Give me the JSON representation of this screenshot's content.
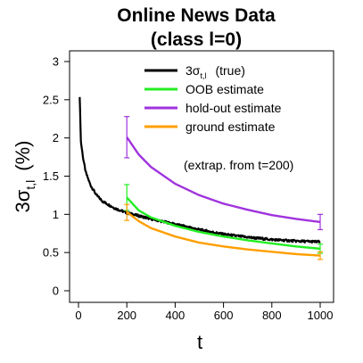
{
  "chart_data": {
    "type": "line",
    "title_line1": "Online News Data",
    "title_line2": "(class l=0)",
    "xlabel": "t",
    "ylabel": {
      "prefix": "3σ",
      "subscript": "t,l",
      "unit": "(%)"
    },
    "xlim": [
      0,
      1000
    ],
    "ylim": [
      0,
      3
    ],
    "x_ticks": [
      "0",
      "200",
      "400",
      "600",
      "800",
      "1000"
    ],
    "y_ticks": [
      "0",
      "0.5",
      "1",
      "1.5",
      "2",
      "2.5",
      "3"
    ],
    "legend_position": "top-right",
    "note": "(extrap. from t=200)",
    "series": [
      {
        "name": "3σt,l (true)",
        "legend_prefix": "3σ",
        "legend_subscript": "t,l",
        "legend_suffix": "(true)",
        "color": "#000000",
        "x": [
          5,
          10,
          20,
          30,
          50,
          75,
          100,
          150,
          200,
          250,
          300,
          400,
          500,
          600,
          700,
          800,
          900,
          1000
        ],
        "y": [
          2.55,
          1.95,
          1.72,
          1.55,
          1.38,
          1.25,
          1.17,
          1.08,
          1.02,
          0.98,
          0.94,
          0.87,
          0.8,
          0.74,
          0.7,
          0.67,
          0.65,
          0.64
        ]
      },
      {
        "name": "OOB estimate",
        "color": "#22ee22",
        "x": [
          200,
          250,
          300,
          400,
          500,
          600,
          700,
          800,
          900,
          1000
        ],
        "y": [
          1.22,
          1.05,
          0.96,
          0.85,
          0.77,
          0.71,
          0.66,
          0.62,
          0.58,
          0.55
        ],
        "errorbars": [
          {
            "x": 200,
            "y": 1.22,
            "lo": 1.05,
            "hi": 1.39
          },
          {
            "x": 1000,
            "y": 0.55,
            "lo": 0.49,
            "hi": 0.61
          }
        ]
      },
      {
        "name": "hold-out estimate",
        "color": "#a033dd",
        "x": [
          200,
          250,
          300,
          400,
          500,
          600,
          700,
          800,
          900,
          1000
        ],
        "y": [
          2.01,
          1.78,
          1.62,
          1.4,
          1.25,
          1.14,
          1.06,
          0.99,
          0.94,
          0.9
        ],
        "errorbars": [
          {
            "x": 200,
            "y": 2.01,
            "lo": 1.74,
            "hi": 2.28
          },
          {
            "x": 1000,
            "y": 0.9,
            "lo": 0.8,
            "hi": 1.0
          }
        ]
      },
      {
        "name": "ground estimate",
        "color": "#ff9f00",
        "x": [
          200,
          250,
          300,
          400,
          500,
          600,
          700,
          800,
          900,
          1000
        ],
        "y": [
          1.03,
          0.91,
          0.82,
          0.71,
          0.63,
          0.58,
          0.54,
          0.51,
          0.48,
          0.46
        ],
        "errorbars": [
          {
            "x": 200,
            "y": 1.03,
            "lo": 0.92,
            "hi": 1.13
          },
          {
            "x": 1000,
            "y": 0.46,
            "lo": 0.41,
            "hi": 0.51
          }
        ]
      }
    ]
  }
}
